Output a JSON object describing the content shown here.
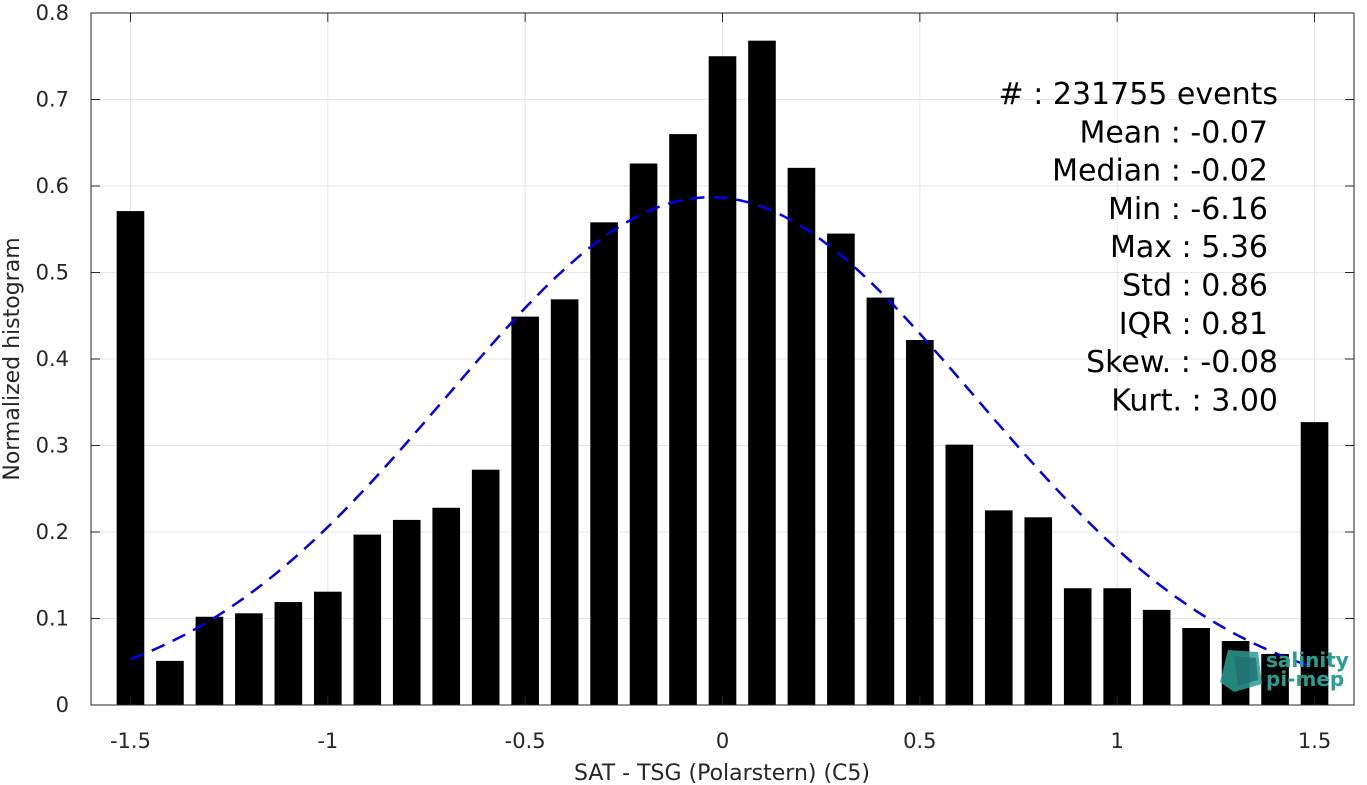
{
  "chart_data": {
    "type": "bar",
    "xlabel": "SAT - TSG (Polarstern) (C5)",
    "ylabel": "Normalized histogram",
    "xlim": [
      -1.6,
      1.6
    ],
    "ylim": [
      0,
      0.8
    ],
    "xticks": [
      -1.5,
      -1,
      -0.5,
      0,
      0.5,
      1,
      1.5
    ],
    "xtick_labels": [
      "-1.5",
      "-1",
      "-0.5",
      "0",
      "0.5",
      "1",
      "1.5"
    ],
    "yticks": [
      0,
      0.1,
      0.2,
      0.3,
      0.4,
      0.5,
      0.6,
      0.7,
      0.8
    ],
    "ytick_labels": [
      "0",
      "0.1",
      "0.2",
      "0.3",
      "0.4",
      "0.5",
      "0.6",
      "0.7",
      "0.8"
    ],
    "grid": true,
    "bar_width": 0.07,
    "bar_color": "#000000",
    "x": [
      -1.5,
      -1.4,
      -1.3,
      -1.2,
      -1.1,
      -1.0,
      -0.9,
      -0.8,
      -0.7,
      -0.6,
      -0.5,
      -0.4,
      -0.3,
      -0.2,
      -0.1,
      0.0,
      0.1,
      0.2,
      0.3,
      0.4,
      0.5,
      0.6,
      0.7,
      0.8,
      0.9,
      1.0,
      1.1,
      1.2,
      1.3,
      1.4,
      1.5
    ],
    "values": [
      0.571,
      0.051,
      0.102,
      0.106,
      0.119,
      0.131,
      0.197,
      0.214,
      0.228,
      0.272,
      0.449,
      0.469,
      0.558,
      0.626,
      0.66,
      0.75,
      0.768,
      0.621,
      0.545,
      0.471,
      0.422,
      0.301,
      0.225,
      0.217,
      0.135,
      0.135,
      0.11,
      0.089,
      0.074,
      0.059,
      0.327
    ],
    "fit_curve": {
      "style": "dashed",
      "color": "#0000ee",
      "mean": -0.03,
      "std": 0.67,
      "peak": 0.587,
      "x_range": [
        -1.5,
        1.5
      ]
    },
    "annotations": [
      {
        "text": "#  : 231755 events",
        "align": "end"
      },
      {
        "text": "Mean : -0.07",
        "align": "end"
      },
      {
        "text": "Median : -0.02",
        "align": "end"
      },
      {
        "text": "Min : -6.16",
        "align": "end"
      },
      {
        "text": "Max : 5.36",
        "align": "end"
      },
      {
        "text": "Std : 0.86",
        "align": "end"
      },
      {
        "text": "IQR : 0.81",
        "align": "end"
      },
      {
        "text": "Skew. : -0.08",
        "align": "end"
      },
      {
        "text": "Kurt. : 3.00",
        "align": "end"
      }
    ]
  },
  "logo": {
    "line1": "salinity",
    "line2": "pi-mep",
    "color": "#2a9d8f"
  }
}
